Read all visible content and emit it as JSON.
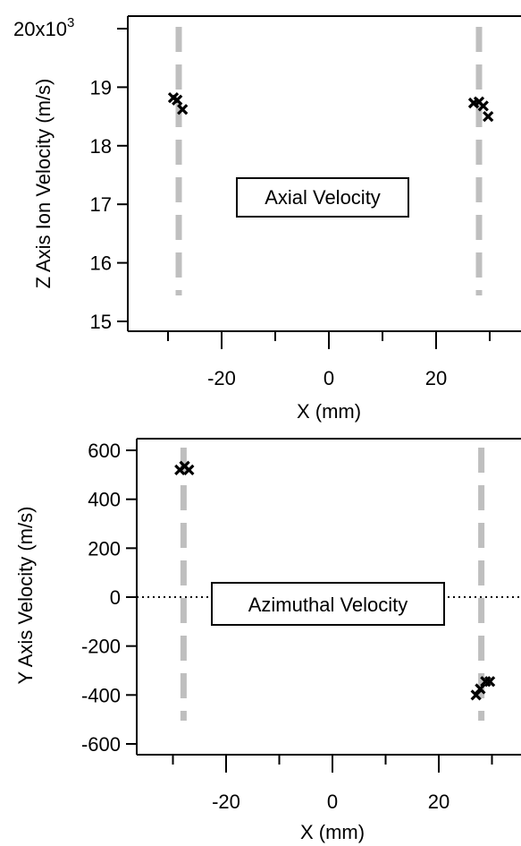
{
  "chart_data": [
    {
      "type": "scatter",
      "title": "",
      "xlabel": "X (mm)",
      "ylabel": "Z Axis Ion Velocity (m/s)",
      "xlim": [
        -35,
        35
      ],
      "ylim": [
        15,
        20
      ],
      "y_multiplier_label": "20x10",
      "y_multiplier_exponent": "3",
      "xticks": [
        "-20",
        "0",
        "20"
      ],
      "yticks": [
        "15",
        "16",
        "17",
        "18",
        "19"
      ],
      "annotation": "Axial Velocity",
      "marker": "x",
      "reference_lines_x": [
        -28,
        28
      ],
      "series": [
        {
          "x": [
            -29.0,
            -28.3,
            -27.3,
            27.0,
            28.0,
            28.8,
            29.7
          ],
          "y": [
            18.82,
            18.78,
            18.62,
            18.73,
            18.75,
            18.68,
            18.5
          ]
        }
      ]
    },
    {
      "type": "scatter",
      "title": "",
      "xlabel": "X (mm)",
      "ylabel": "Y Axis Velocity (m/s)",
      "xlim": [
        -36,
        36
      ],
      "ylim": [
        -640,
        640
      ],
      "xticks": [
        "-20",
        "0",
        "20"
      ],
      "yticks": [
        "-600",
        "-400",
        "-200",
        "0",
        "200",
        "400",
        "600"
      ],
      "annotation": "Azimuthal Velocity",
      "marker": "x",
      "zero_line": true,
      "reference_lines_x": [
        -28,
        28
      ],
      "series": [
        {
          "x": [
            -28.7,
            -27.8,
            -27.0,
            27.0,
            27.8,
            28.8,
            29.6
          ],
          "y": [
            520,
            535,
            520,
            -400,
            -375,
            -345,
            -345
          ]
        }
      ]
    }
  ]
}
